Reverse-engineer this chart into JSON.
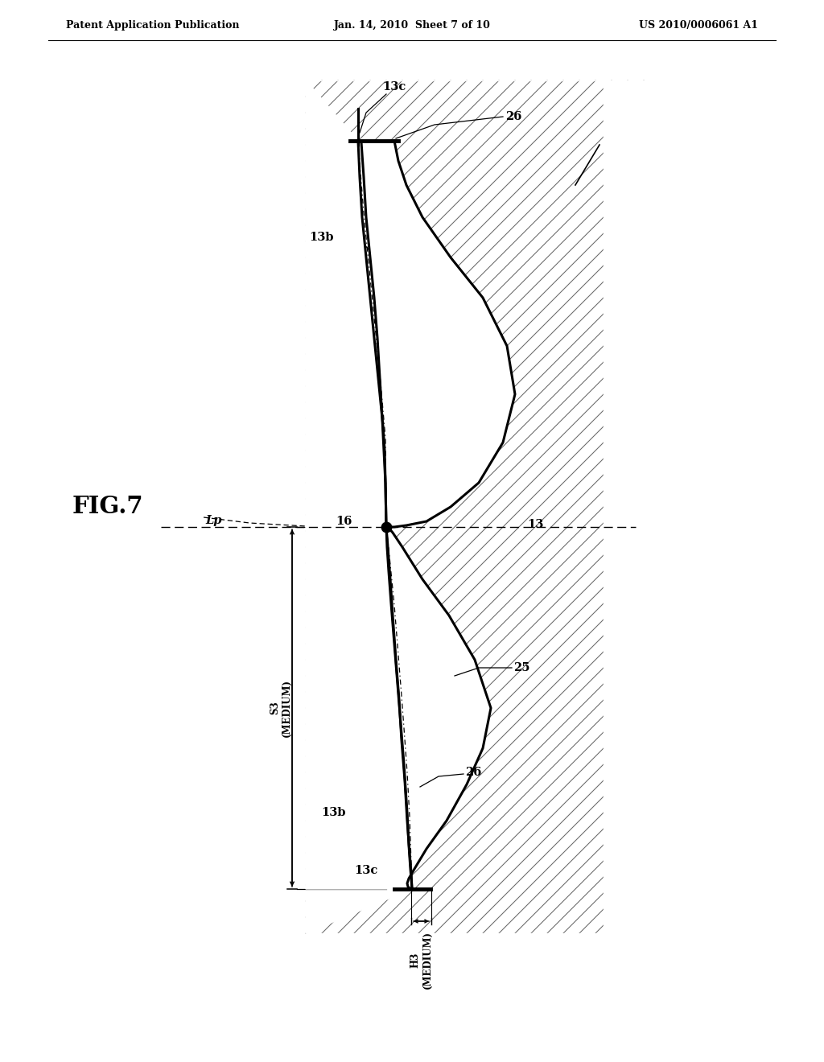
{
  "bg_color": "#ffffff",
  "header_left": "Patent Application Publication",
  "header_mid": "Jan. 14, 2010  Sheet 7 of 10",
  "header_right": "US 2010/0006061 A1",
  "fig_label": "FIG.7"
}
